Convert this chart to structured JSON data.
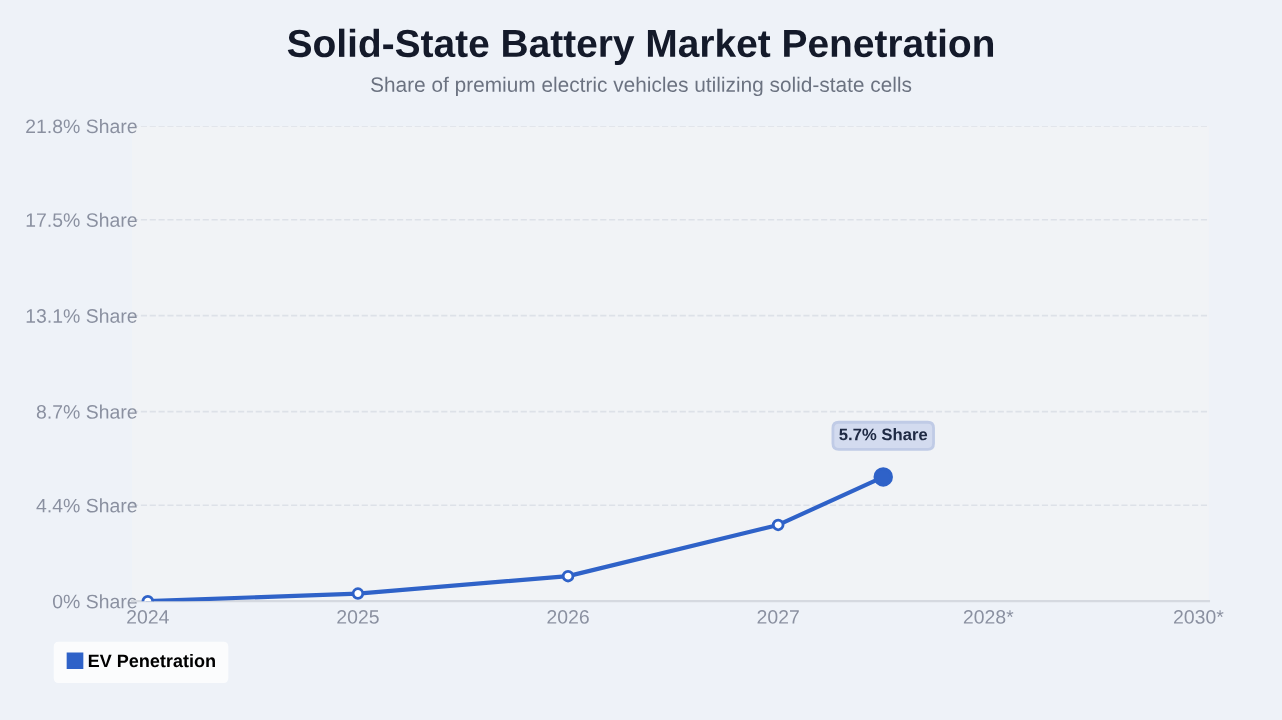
{
  "chart_data": {
    "type": "line",
    "title": "Solid-State Battery Market Penetration",
    "subtitle": "Share of premium electric vehicles utilizing solid-state cells",
    "categories": [
      "2024",
      null,
      "2025",
      null,
      "2026",
      null,
      "2027",
      null,
      "2028*",
      null,
      "2030*"
    ],
    "series": [
      {
        "name": "EV Penetration",
        "color": "#2f62c8",
        "values": [
          0.0,
          null,
          0.35,
          null,
          1.15,
          null,
          3.5,
          5.7,
          null,
          null,
          null
        ],
        "value_labels": [
          null,
          null,
          null,
          null,
          null,
          null,
          null,
          "5.7% Share",
          null,
          null,
          null
        ]
      }
    ],
    "ylim": [
      0,
      21.8
    ],
    "yticks": [
      {
        "value": 0,
        "label": "0% Share"
      },
      {
        "value": 4.4,
        "label": "4.4% Share"
      },
      {
        "value": 8.7,
        "label": "8.7% Share"
      },
      {
        "value": 13.1,
        "label": "13.1% Share"
      },
      {
        "value": 17.5,
        "label": "17.5% Share"
      },
      {
        "value": 21.8,
        "label": "21.8% Share"
      }
    ],
    "grid": "y",
    "legend": "bottom left",
    "marker": "circle",
    "line_style": "solid"
  }
}
